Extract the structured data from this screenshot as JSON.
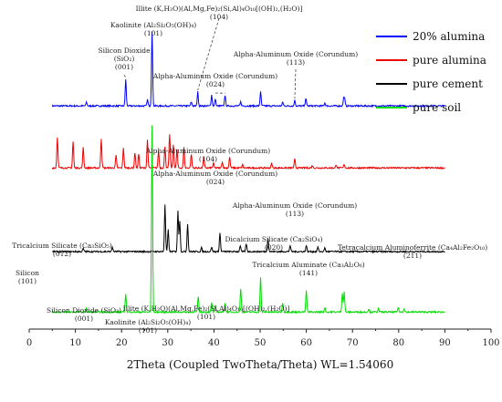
{
  "chart_data": {
    "type": "line",
    "xlabel": "2Theta (Coupled TwoTheta/Theta) WL=1.54060",
    "ylabel": "",
    "xlim": [
      0,
      100
    ],
    "x_ticks": [
      0,
      10,
      20,
      30,
      40,
      50,
      60,
      70,
      80,
      90,
      100
    ],
    "grid": false,
    "legend_position": "top-right",
    "series": [
      {
        "name": "20% alumina",
        "color": "#0000ff",
        "baseline": 0.72,
        "peaks": [
          [
            12.4,
            0.012
          ],
          [
            20.9,
            0.085
          ],
          [
            26.6,
            0.24
          ],
          [
            25.6,
            0.02
          ],
          [
            35.1,
            0.013
          ],
          [
            36.5,
            0.045
          ],
          [
            39.5,
            0.035
          ],
          [
            40.3,
            0.022
          ],
          [
            42.4,
            0.035
          ],
          [
            45.8,
            0.013
          ],
          [
            50.1,
            0.045
          ],
          [
            54.9,
            0.012
          ],
          [
            57.5,
            0.018
          ],
          [
            59.9,
            0.025
          ],
          [
            64.0,
            0.01
          ],
          [
            68.1,
            0.022
          ],
          [
            68.3,
            0.02
          ]
        ]
      },
      {
        "name": "pure alumina",
        "color": "#ee0000",
        "baseline": 0.52,
        "peaks": [
          [
            6.1,
            0.1
          ],
          [
            9.5,
            0.085
          ],
          [
            11.7,
            0.065
          ],
          [
            15.6,
            0.095
          ],
          [
            18.8,
            0.04
          ],
          [
            20.4,
            0.065
          ],
          [
            22.9,
            0.05
          ],
          [
            23.7,
            0.045
          ],
          [
            25.6,
            0.09
          ],
          [
            28.0,
            0.055
          ],
          [
            29.4,
            0.07
          ],
          [
            30.4,
            0.11
          ],
          [
            31.2,
            0.075
          ],
          [
            32.0,
            0.06
          ],
          [
            33.5,
            0.065
          ],
          [
            35.1,
            0.045
          ],
          [
            37.8,
            0.035
          ],
          [
            39.9,
            0.015
          ],
          [
            41.8,
            0.02
          ],
          [
            43.4,
            0.035
          ],
          [
            46.2,
            0.01
          ],
          [
            52.5,
            0.015
          ],
          [
            57.5,
            0.028
          ],
          [
            61.3,
            0.008
          ],
          [
            66.5,
            0.01
          ],
          [
            68.2,
            0.012
          ]
        ]
      },
      {
        "name": "pure cement",
        "color": "#000000",
        "baseline": 0.25,
        "peaks": [
          [
            11.7,
            0.01
          ],
          [
            18.0,
            0.015
          ],
          [
            29.4,
            0.15
          ],
          [
            30.1,
            0.07
          ],
          [
            32.2,
            0.13
          ],
          [
            32.6,
            0.1
          ],
          [
            34.3,
            0.09
          ],
          [
            37.3,
            0.012
          ],
          [
            39.5,
            0.015
          ],
          [
            41.3,
            0.06
          ],
          [
            45.7,
            0.02
          ],
          [
            47.0,
            0.025
          ],
          [
            51.7,
            0.045
          ],
          [
            56.5,
            0.02
          ],
          [
            60.0,
            0.02
          ],
          [
            62.5,
            0.015
          ],
          [
            64.0,
            0.012
          ]
        ]
      },
      {
        "name": "pure soil",
        "color": "#00dd00",
        "baseline": 0.055,
        "peaks": [
          [
            12.4,
            0.015
          ],
          [
            20.9,
            0.06
          ],
          [
            26.6,
            0.6
          ],
          [
            36.6,
            0.05
          ],
          [
            39.5,
            0.03
          ],
          [
            40.3,
            0.02
          ],
          [
            42.4,
            0.03
          ],
          [
            45.8,
            0.075
          ],
          [
            50.1,
            0.11
          ],
          [
            54.9,
            0.03
          ],
          [
            60.0,
            0.07
          ],
          [
            64.0,
            0.015
          ],
          [
            67.8,
            0.06
          ],
          [
            68.2,
            0.065
          ],
          [
            73.5,
            0.01
          ],
          [
            75.6,
            0.01
          ],
          [
            79.9,
            0.015
          ],
          [
            81.2,
            0.012
          ]
        ]
      }
    ],
    "annotations": [
      {
        "lines": [
          "Illite (K,H₃O)(Al,Mg,Fe)₂(Si,Al)₄O₁₀[(OH)₂,(H₂O)]",
          "(104)"
        ],
        "x": 36.5,
        "series": "20% alumina"
      },
      {
        "lines": [
          "Kaolinite (Al₂Si₂O₅(OH)₄)",
          "(101)"
        ],
        "x": 26.6,
        "series": "20% alumina"
      },
      {
        "lines": [
          "Silicon Dioxide",
          "(SiO₂)",
          "(001)"
        ],
        "x": 20.9,
        "series": "20% alumina"
      },
      {
        "lines": [
          "Alpha-Aluminum Oxide (Corundum)",
          "(024)"
        ],
        "x": 42.4,
        "series": "20% alumina"
      },
      {
        "lines": [
          "Alpha-Aluminum Oxide (Corundum)",
          "(113)"
        ],
        "x": 57.5,
        "series": "20% alumina"
      },
      {
        "lines": [
          "Alpha-Aluminum Oxide (Corundum)",
          "(104)"
        ],
        "x": 37.8,
        "series": "pure alumina"
      },
      {
        "lines": [
          "Alpha-Aluminum Oxide (Corundum)",
          "(024)"
        ],
        "x": 43.4,
        "series": "pure alumina"
      },
      {
        "lines": [
          "Alpha-Aluminum Oxide (Corundum)",
          "(113)"
        ],
        "x": 57.5,
        "series": "pure alumina"
      },
      {
        "lines": [
          "Tricalcium Silicate (Ca₃SiO₅)",
          "(012)"
        ],
        "x": 29.4,
        "series": "pure cement"
      },
      {
        "lines": [
          "Dicalcium Silicate (Ca₂SiO₄)",
          "(020)"
        ],
        "x": 32.2,
        "series": "pure cement"
      },
      {
        "lines": [
          "Tricalcium Aluminate (Ca₃Al₂O₆)",
          "(141)"
        ],
        "x": 33.3,
        "series": "pure cement"
      },
      {
        "lines": [
          "Tetracalcium Aluminoferrite (Ca₄Al₂Fe₂O₁₀)",
          "(211)"
        ],
        "x": 51.7,
        "series": "pure cement"
      },
      {
        "lines": [
          "Silicon",
          "(101)"
        ],
        "x": 28.4,
        "series": "pure cement"
      },
      {
        "lines": [
          "Silicon Dioxide (SiO₂)",
          "(001)"
        ],
        "x": 12.4,
        "series": "pure soil"
      },
      {
        "lines": [
          "Illite (K,H₃O)(Al,Mg,Fe)₂(Si,Al)₄O₁₀[(OH)₂,(H₂O)]",
          "(101)"
        ],
        "x": 36.6,
        "series": "pure soil"
      },
      {
        "lines": [
          "Kaolinite (Al₂Si₂O₅(OH)₄)",
          "(101)"
        ],
        "x": 26.6,
        "series": "pure soil"
      }
    ]
  }
}
